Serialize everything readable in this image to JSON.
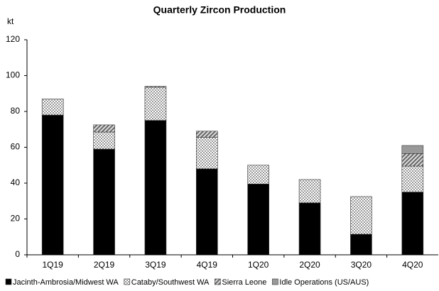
{
  "chart_data": {
    "type": "stacked_bar",
    "title": "Quarterly Zircon Production",
    "y_label": "kt",
    "categories": [
      "1Q19",
      "2Q19",
      "3Q19",
      "4Q19",
      "1Q20",
      "2Q20",
      "3Q20",
      "4Q20"
    ],
    "series": [
      {
        "name": "Jacinth-Ambrosia/Midwest WA",
        "color": "#000000",
        "pattern": "solid",
        "values": [
          78,
          59,
          75,
          48,
          39.5,
          29,
          11.5,
          35
        ]
      },
      {
        "name": "Cataby/Southwest WA",
        "color": "#bbbbbb",
        "pattern": "dots",
        "values": [
          9,
          9.5,
          18.5,
          17.5,
          10.5,
          13,
          21,
          14.5
        ]
      },
      {
        "name": "Sierra Leone",
        "color": "#888888",
        "pattern": "hatch",
        "values": [
          0,
          4,
          0.5,
          3.5,
          0,
          0,
          0,
          7
        ]
      },
      {
        "name": "Idle Operations (US/AUS)",
        "color": "#999999",
        "pattern": "solid",
        "values": [
          0,
          0,
          0,
          0,
          0,
          0,
          0,
          4.5
        ]
      }
    ],
    "ylim": [
      0,
      120
    ],
    "yticks": [
      0,
      20,
      40,
      60,
      80,
      100,
      120
    ],
    "grid": false,
    "legend": "bottom"
  }
}
